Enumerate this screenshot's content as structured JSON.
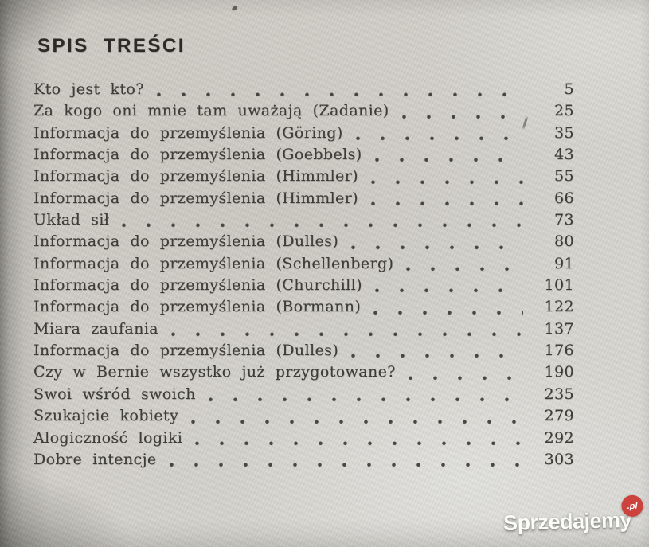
{
  "toc": {
    "title": "SPIS TREŚCI",
    "entries": [
      {
        "title": "Kto jest kto?",
        "page": "5"
      },
      {
        "title": "Za kogo oni mnie tam uważają (Zadanie)",
        "page": "25"
      },
      {
        "title": "Informacja do przemyślenia (Göring)",
        "page": "35"
      },
      {
        "title": "Informacja do przemyślenia (Goebbels)",
        "page": "43"
      },
      {
        "title": "Informacja do przemyślenia (Himmler)",
        "page": "55"
      },
      {
        "title": "Informacja do przemyślenia (Himmler)",
        "page": "66"
      },
      {
        "title": "Układ sił",
        "page": "73"
      },
      {
        "title": "Informacja do przemyślenia (Dulles)",
        "page": "80"
      },
      {
        "title": "Informacja do przemyślenia (Schellenberg)",
        "page": "91"
      },
      {
        "title": "Informacja do przemyślenia (Churchill)",
        "page": "101"
      },
      {
        "title": "Informacja do przemyślenia (Bormann)",
        "page": "122"
      },
      {
        "title": "Miara zaufania",
        "page": "137"
      },
      {
        "title": "Informacja do przemyślenia (Dulles)",
        "page": "176"
      },
      {
        "title": "Czy w Bernie wszystko już przygotowane?",
        "page": "190"
      },
      {
        "title": "Swoi wśród swoich",
        "page": "235"
      },
      {
        "title": "Szukajcie kobiety",
        "page": "279"
      },
      {
        "title": "Alogiczność logiki",
        "page": "292"
      },
      {
        "title": "Dobre intencje",
        "page": "303"
      }
    ]
  },
  "watermark": {
    "brand": "Sprzedajemy",
    "badge": ".pl"
  },
  "colors": {
    "paper": "#d2d0c9",
    "ink": "#3e3c36",
    "watermark_text": "#fbfbfa",
    "watermark_badge": "#cc423d"
  }
}
